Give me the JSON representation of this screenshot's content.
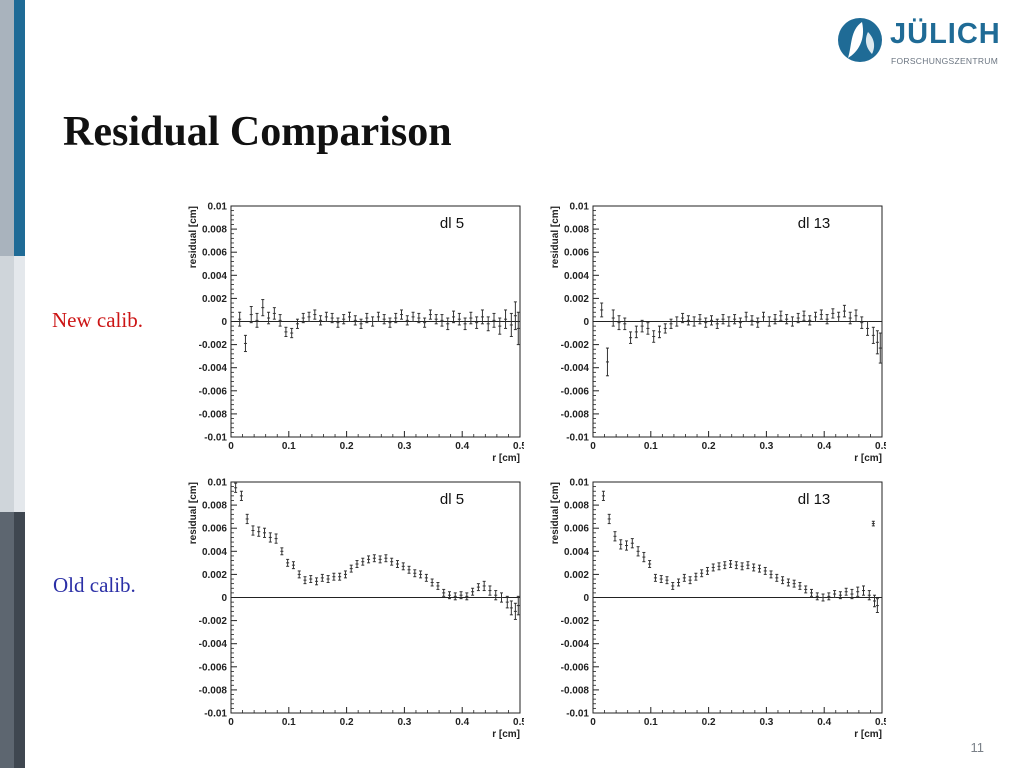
{
  "slide": {
    "title": "Residual Comparison",
    "page_number": "11"
  },
  "logo": {
    "name": "JÜLICH",
    "subtitle": "FORSCHUNGSZENTRUM",
    "color": "#1f6b96"
  },
  "row_labels": {
    "new": "New  calib.",
    "old": "Old calib."
  },
  "colors": {
    "new_label": "#cc1414",
    "old_label": "#2b2fa6",
    "accent": "#1f6b96"
  },
  "chart_data": [
    {
      "type": "scatter",
      "label": "dl 5",
      "row": "New  calib.",
      "xlabel": "r [cm]",
      "ylabel": "residual [cm]",
      "xlim": [
        0,
        0.5
      ],
      "ylim": [
        -0.01,
        0.01
      ],
      "xticks": [
        "0",
        "0.1",
        "0.2",
        "0.3",
        "0.4",
        "0.5"
      ],
      "yticks": [
        "0.01",
        "0.008",
        "0.006",
        "0.004",
        "0.002",
        "0",
        "-0.002",
        "-0.004",
        "-0.006",
        "-0.008",
        "-0.01"
      ],
      "grid": false,
      "zero_line": true,
      "points": [
        [
          0.015,
          0.0002,
          0.0006
        ],
        [
          0.025,
          -0.0019,
          0.0007
        ],
        [
          0.035,
          0.0006,
          0.0007
        ],
        [
          0.045,
          0.0001,
          0.0006
        ],
        [
          0.055,
          0.0012,
          0.0007
        ],
        [
          0.065,
          0.0003,
          0.0005
        ],
        [
          0.075,
          0.0007,
          0.0005
        ],
        [
          0.085,
          0.0001,
          0.0005
        ],
        [
          0.095,
          -0.0009,
          0.0004
        ],
        [
          0.105,
          -0.001,
          0.0004
        ],
        [
          0.115,
          -0.0002,
          0.0004
        ],
        [
          0.125,
          0.0003,
          0.0004
        ],
        [
          0.135,
          0.0004,
          0.0004
        ],
        [
          0.145,
          0.0006,
          0.0004
        ],
        [
          0.155,
          0.0001,
          0.0004
        ],
        [
          0.165,
          0.0004,
          0.0004
        ],
        [
          0.175,
          0.0003,
          0.0004
        ],
        [
          0.185,
          -0.0001,
          0.0004
        ],
        [
          0.195,
          0.0002,
          0.0004
        ],
        [
          0.205,
          0.0004,
          0.0004
        ],
        [
          0.215,
          0.0001,
          0.0004
        ],
        [
          0.225,
          -0.0002,
          0.0004
        ],
        [
          0.235,
          0.0003,
          0.0004
        ],
        [
          0.245,
          0.0,
          0.0004
        ],
        [
          0.255,
          0.0004,
          0.0004
        ],
        [
          0.265,
          0.0002,
          0.0004
        ],
        [
          0.275,
          -0.0001,
          0.0004
        ],
        [
          0.285,
          0.0003,
          0.0004
        ],
        [
          0.295,
          0.0006,
          0.0004
        ],
        [
          0.305,
          0.0001,
          0.0004
        ],
        [
          0.315,
          0.0004,
          0.0004
        ],
        [
          0.325,
          0.0003,
          0.0004
        ],
        [
          0.335,
          -0.0001,
          0.0004
        ],
        [
          0.345,
          0.0006,
          0.0004
        ],
        [
          0.355,
          0.0002,
          0.0004
        ],
        [
          0.365,
          0.0001,
          0.0005
        ],
        [
          0.375,
          -0.0002,
          0.0005
        ],
        [
          0.385,
          0.0004,
          0.0005
        ],
        [
          0.395,
          0.0002,
          0.0005
        ],
        [
          0.405,
          -0.0002,
          0.0005
        ],
        [
          0.415,
          0.0003,
          0.0005
        ],
        [
          0.425,
          -0.0001,
          0.0005
        ],
        [
          0.435,
          0.0004,
          0.0006
        ],
        [
          0.445,
          -0.0002,
          0.0006
        ],
        [
          0.455,
          0.0001,
          0.0006
        ],
        [
          0.465,
          -0.0004,
          0.0007
        ],
        [
          0.475,
          0.0002,
          0.0008
        ],
        [
          0.485,
          -0.0003,
          0.001
        ],
        [
          0.492,
          0.0005,
          0.0012
        ],
        [
          0.497,
          -0.0006,
          0.0014
        ]
      ]
    },
    {
      "type": "scatter",
      "label": "dl 13",
      "row": "New  calib.",
      "xlabel": "r [cm]",
      "ylabel": "residual [cm]",
      "xlim": [
        0,
        0.5
      ],
      "ylim": [
        -0.01,
        0.01
      ],
      "xticks": [
        "0",
        "0.1",
        "0.2",
        "0.3",
        "0.4",
        "0.5"
      ],
      "yticks": [
        "0.01",
        "0.008",
        "0.006",
        "0.004",
        "0.002",
        "0",
        "-0.002",
        "-0.004",
        "-0.006",
        "-0.008",
        "-0.01"
      ],
      "grid": false,
      "zero_line": true,
      "points": [
        [
          0.015,
          0.001,
          0.0006
        ],
        [
          0.025,
          -0.0035,
          0.0012
        ],
        [
          0.035,
          0.0003,
          0.0007
        ],
        [
          0.045,
          -0.0001,
          0.0006
        ],
        [
          0.055,
          -0.0002,
          0.0005
        ],
        [
          0.065,
          -0.0014,
          0.0005
        ],
        [
          0.075,
          -0.0009,
          0.0005
        ],
        [
          0.085,
          -0.0004,
          0.0005
        ],
        [
          0.095,
          -0.0006,
          0.0005
        ],
        [
          0.105,
          -0.0013,
          0.0005
        ],
        [
          0.115,
          -0.0009,
          0.0005
        ],
        [
          0.125,
          -0.0006,
          0.0004
        ],
        [
          0.135,
          -0.0002,
          0.0004
        ],
        [
          0.145,
          0.0,
          0.0004
        ],
        [
          0.155,
          0.0003,
          0.0004
        ],
        [
          0.165,
          0.0001,
          0.0004
        ],
        [
          0.175,
          0.0,
          0.0004
        ],
        [
          0.185,
          0.0002,
          0.0004
        ],
        [
          0.195,
          -0.0001,
          0.0004
        ],
        [
          0.205,
          0.0001,
          0.0004
        ],
        [
          0.215,
          -0.0002,
          0.0004
        ],
        [
          0.225,
          0.0002,
          0.0004
        ],
        [
          0.235,
          0.0,
          0.0004
        ],
        [
          0.245,
          0.0002,
          0.0004
        ],
        [
          0.255,
          -0.0001,
          0.0004
        ],
        [
          0.265,
          0.0004,
          0.0004
        ],
        [
          0.275,
          0.0001,
          0.0004
        ],
        [
          0.285,
          -0.0001,
          0.0004
        ],
        [
          0.295,
          0.0004,
          0.0004
        ],
        [
          0.305,
          0.0,
          0.0004
        ],
        [
          0.315,
          0.0002,
          0.0004
        ],
        [
          0.325,
          0.0005,
          0.0004
        ],
        [
          0.335,
          0.0002,
          0.0004
        ],
        [
          0.345,
          0.0,
          0.0004
        ],
        [
          0.355,
          0.0003,
          0.0004
        ],
        [
          0.365,
          0.0005,
          0.0004
        ],
        [
          0.375,
          0.0001,
          0.0004
        ],
        [
          0.385,
          0.0004,
          0.0004
        ],
        [
          0.395,
          0.0006,
          0.0004
        ],
        [
          0.405,
          0.0002,
          0.0004
        ],
        [
          0.415,
          0.0007,
          0.0004
        ],
        [
          0.425,
          0.0004,
          0.0004
        ],
        [
          0.435,
          0.0009,
          0.0005
        ],
        [
          0.445,
          0.0003,
          0.0005
        ],
        [
          0.455,
          0.0005,
          0.0005
        ],
        [
          0.465,
          -0.0001,
          0.0005
        ],
        [
          0.475,
          -0.0006,
          0.0006
        ],
        [
          0.485,
          -0.0012,
          0.0007
        ],
        [
          0.492,
          -0.0018,
          0.001
        ],
        [
          0.497,
          -0.0023,
          0.0013
        ]
      ]
    },
    {
      "type": "scatter",
      "label": "dl 5",
      "row": "Old calib.",
      "xlabel": "r [cm]",
      "ylabel": "residual [cm]",
      "xlim": [
        0,
        0.5
      ],
      "ylim": [
        -0.01,
        0.01
      ],
      "xticks": [
        "0",
        "0.1",
        "0.2",
        "0.3",
        "0.4",
        "0.5"
      ],
      "yticks": [
        "0.01",
        "0.008",
        "0.006",
        "0.004",
        "0.002",
        "0",
        "-0.002",
        "-0.004",
        "-0.006",
        "-0.008",
        "-0.01"
      ],
      "grid": false,
      "zero_line": true,
      "points": [
        [
          0.008,
          0.0095,
          0.0004
        ],
        [
          0.018,
          0.0088,
          0.0004
        ],
        [
          0.028,
          0.0068,
          0.0004
        ],
        [
          0.038,
          0.0058,
          0.0004
        ],
        [
          0.048,
          0.0057,
          0.0004
        ],
        [
          0.058,
          0.0056,
          0.0004
        ],
        [
          0.068,
          0.0052,
          0.0004
        ],
        [
          0.078,
          0.0051,
          0.0004
        ],
        [
          0.088,
          0.004,
          0.0003
        ],
        [
          0.098,
          0.003,
          0.0003
        ],
        [
          0.108,
          0.0028,
          0.0003
        ],
        [
          0.118,
          0.002,
          0.0003
        ],
        [
          0.128,
          0.0015,
          0.0003
        ],
        [
          0.138,
          0.0016,
          0.0003
        ],
        [
          0.148,
          0.0014,
          0.0003
        ],
        [
          0.158,
          0.0017,
          0.0003
        ],
        [
          0.168,
          0.0016,
          0.0003
        ],
        [
          0.178,
          0.0018,
          0.0003
        ],
        [
          0.188,
          0.0018,
          0.0003
        ],
        [
          0.198,
          0.002,
          0.0003
        ],
        [
          0.208,
          0.0025,
          0.0003
        ],
        [
          0.218,
          0.0029,
          0.0003
        ],
        [
          0.228,
          0.0031,
          0.0003
        ],
        [
          0.238,
          0.0033,
          0.0003
        ],
        [
          0.248,
          0.0034,
          0.0003
        ],
        [
          0.258,
          0.0033,
          0.0003
        ],
        [
          0.268,
          0.0034,
          0.0003
        ],
        [
          0.278,
          0.0031,
          0.0003
        ],
        [
          0.288,
          0.0029,
          0.0003
        ],
        [
          0.298,
          0.0027,
          0.0003
        ],
        [
          0.308,
          0.0024,
          0.0003
        ],
        [
          0.318,
          0.0021,
          0.0003
        ],
        [
          0.328,
          0.002,
          0.0003
        ],
        [
          0.338,
          0.0017,
          0.0003
        ],
        [
          0.348,
          0.0013,
          0.0003
        ],
        [
          0.358,
          0.001,
          0.0003
        ],
        [
          0.368,
          0.0004,
          0.0003
        ],
        [
          0.378,
          0.0002,
          0.0003
        ],
        [
          0.388,
          0.0001,
          0.0003
        ],
        [
          0.398,
          0.0002,
          0.0003
        ],
        [
          0.408,
          0.0001,
          0.0003
        ],
        [
          0.418,
          0.0005,
          0.0003
        ],
        [
          0.428,
          0.0009,
          0.0003
        ],
        [
          0.438,
          0.001,
          0.0004
        ],
        [
          0.448,
          0.0006,
          0.0004
        ],
        [
          0.458,
          0.0002,
          0.0004
        ],
        [
          0.468,
          0.0,
          0.0004
        ],
        [
          0.478,
          -0.0004,
          0.0005
        ],
        [
          0.485,
          -0.0009,
          0.0006
        ],
        [
          0.492,
          -0.0012,
          0.0007
        ],
        [
          0.497,
          -0.0007,
          0.0008
        ]
      ]
    },
    {
      "type": "scatter",
      "label": "dl 13",
      "row": "Old calib.",
      "xlabel": "r [cm]",
      "ylabel": "residual [cm]",
      "xlim": [
        0,
        0.5
      ],
      "ylim": [
        -0.01,
        0.01
      ],
      "xticks": [
        "0",
        "0.1",
        "0.2",
        "0.3",
        "0.4",
        "0.5"
      ],
      "yticks": [
        "0.01",
        "0.008",
        "0.006",
        "0.004",
        "0.002",
        "0",
        "-0.002",
        "-0.004",
        "-0.006",
        "-0.008",
        "-0.01"
      ],
      "grid": false,
      "zero_line": true,
      "points": [
        [
          0.018,
          0.0088,
          0.0004
        ],
        [
          0.028,
          0.0068,
          0.0004
        ],
        [
          0.038,
          0.0053,
          0.0004
        ],
        [
          0.048,
          0.0046,
          0.0004
        ],
        [
          0.058,
          0.0045,
          0.0004
        ],
        [
          0.068,
          0.0047,
          0.0004
        ],
        [
          0.078,
          0.004,
          0.0004
        ],
        [
          0.088,
          0.0035,
          0.0004
        ],
        [
          0.098,
          0.0029,
          0.0003
        ],
        [
          0.108,
          0.0017,
          0.0003
        ],
        [
          0.118,
          0.0016,
          0.0003
        ],
        [
          0.128,
          0.0015,
          0.0003
        ],
        [
          0.138,
          0.001,
          0.0003
        ],
        [
          0.148,
          0.0013,
          0.0003
        ],
        [
          0.158,
          0.0017,
          0.0003
        ],
        [
          0.168,
          0.0015,
          0.0003
        ],
        [
          0.178,
          0.0018,
          0.0003
        ],
        [
          0.188,
          0.0021,
          0.0003
        ],
        [
          0.198,
          0.0023,
          0.0003
        ],
        [
          0.208,
          0.0026,
          0.0003
        ],
        [
          0.218,
          0.0027,
          0.0003
        ],
        [
          0.228,
          0.0028,
          0.0003
        ],
        [
          0.238,
          0.0029,
          0.0003
        ],
        [
          0.248,
          0.0028,
          0.0003
        ],
        [
          0.258,
          0.0027,
          0.0003
        ],
        [
          0.268,
          0.0028,
          0.0003
        ],
        [
          0.278,
          0.0026,
          0.0003
        ],
        [
          0.288,
          0.0025,
          0.0003
        ],
        [
          0.298,
          0.0023,
          0.0003
        ],
        [
          0.308,
          0.002,
          0.0003
        ],
        [
          0.318,
          0.0017,
          0.0003
        ],
        [
          0.328,
          0.0015,
          0.0003
        ],
        [
          0.338,
          0.0013,
          0.0003
        ],
        [
          0.348,
          0.0012,
          0.0003
        ],
        [
          0.358,
          0.001,
          0.0003
        ],
        [
          0.368,
          0.0007,
          0.0003
        ],
        [
          0.378,
          0.0004,
          0.0003
        ],
        [
          0.388,
          0.0001,
          0.0003
        ],
        [
          0.398,
          0.0,
          0.0003
        ],
        [
          0.408,
          0.0001,
          0.0003
        ],
        [
          0.418,
          0.0003,
          0.0003
        ],
        [
          0.428,
          0.0002,
          0.0003
        ],
        [
          0.438,
          0.0005,
          0.0003
        ],
        [
          0.448,
          0.0003,
          0.0004
        ],
        [
          0.458,
          0.0005,
          0.0004
        ],
        [
          0.468,
          0.0006,
          0.0004
        ],
        [
          0.478,
          0.0002,
          0.0004
        ],
        [
          0.485,
          0.0064,
          0.0002
        ],
        [
          0.487,
          -0.0003,
          0.0005
        ],
        [
          0.492,
          -0.0007,
          0.0006
        ]
      ]
    }
  ]
}
